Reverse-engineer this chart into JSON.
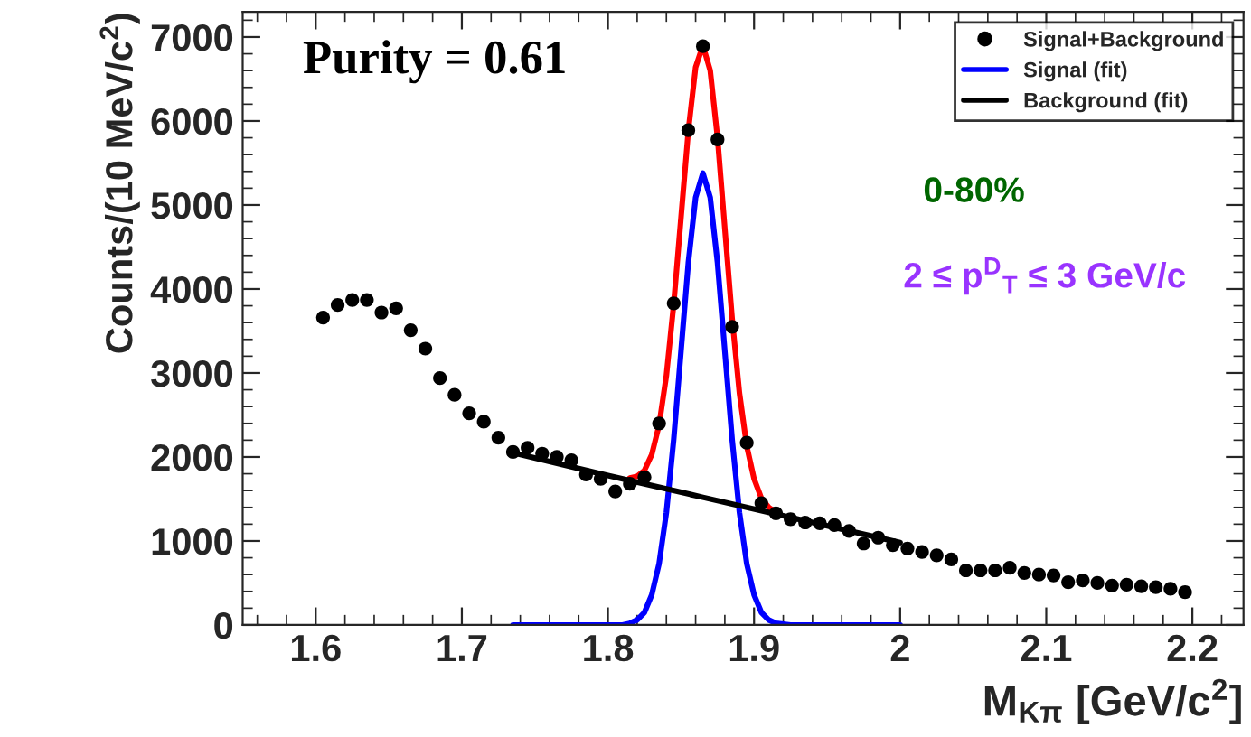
{
  "chart_data": {
    "type": "scatter",
    "xlabel": "M$_{Kπ}$ [GeV/c$^{2}$]",
    "ylabel": "Counts/(10 MeV/c$^{2}$)",
    "xlim": [
      1.55,
      2.235
    ],
    "ylim": [
      0,
      7300
    ],
    "xticks": [
      1.6,
      1.7,
      1.8,
      1.9,
      2,
      2.1,
      2.2
    ],
    "yticks": [
      0,
      1000,
      2000,
      3000,
      4000,
      5000,
      6000,
      7000
    ],
    "grid": false,
    "legend": "top right",
    "annotations": [
      "Purity = 0.61",
      "0-80%",
      "2 ≤ p$^{D}$$_{T}$ ≤ 3 GeV/c"
    ],
    "series": [
      {
        "name": "Signal+Background",
        "marker": "circle",
        "color": "#000000",
        "x": [
          1.605,
          1.615,
          1.625,
          1.635,
          1.645,
          1.655,
          1.665,
          1.675,
          1.685,
          1.695,
          1.705,
          1.715,
          1.725,
          1.735,
          1.745,
          1.755,
          1.765,
          1.775,
          1.785,
          1.795,
          1.805,
          1.815,
          1.825,
          1.835,
          1.845,
          1.855,
          1.865,
          1.875,
          1.885,
          1.895,
          1.905,
          1.915,
          1.925,
          1.935,
          1.945,
          1.955,
          1.965,
          1.975,
          1.985,
          1.995,
          2.005,
          2.015,
          2.025,
          2.035,
          2.045,
          2.055,
          2.065,
          2.075,
          2.085,
          2.095,
          2.105,
          2.115,
          2.125,
          2.135,
          2.145,
          2.155,
          2.165,
          2.175,
          2.185,
          2.195
        ],
        "values": [
          3660,
          3810,
          3870,
          3870,
          3720,
          3770,
          3510,
          3290,
          2940,
          2740,
          2520,
          2420,
          2230,
          2060,
          2110,
          2040,
          2000,
          1960,
          1790,
          1740,
          1590,
          1680,
          1760,
          2400,
          3830,
          5890,
          6890,
          5780,
          3550,
          2170,
          1450,
          1330,
          1260,
          1220,
          1210,
          1190,
          1120,
          970,
          1040,
          950,
          910,
          870,
          830,
          780,
          650,
          650,
          650,
          680,
          620,
          600,
          590,
          510,
          530,
          500,
          470,
          480,
          460,
          450,
          430,
          390
        ]
      },
      {
        "type": "line",
        "marker": "none",
        "color": "#ff0000",
        "x": [
          1.815,
          1.82,
          1.825,
          1.83,
          1.835,
          1.84,
          1.845,
          1.85,
          1.855,
          1.86,
          1.865,
          1.87,
          1.875,
          1.88,
          1.885,
          1.89,
          1.895,
          1.9,
          1.905,
          1.91,
          1.915
        ],
        "values": [
          1750,
          1770,
          1840,
          2030,
          2380,
          2970,
          3820,
          4850,
          5880,
          6640,
          6900,
          6600,
          5800,
          4720,
          3650,
          2760,
          2130,
          1740,
          1510,
          1400,
          1340
        ]
      },
      {
        "name": "Signal (fit)",
        "type": "line",
        "marker": "none",
        "color": "#0000ff",
        "x": [
          1.735,
          1.8,
          1.81,
          1.815,
          1.82,
          1.825,
          1.83,
          1.835,
          1.84,
          1.845,
          1.85,
          1.855,
          1.86,
          1.865,
          1.87,
          1.875,
          1.88,
          1.885,
          1.89,
          1.895,
          1.9,
          1.905,
          1.91,
          1.915,
          1.925,
          2.0
        ],
        "values": [
          0,
          0,
          0,
          20,
          60,
          150,
          360,
          730,
          1340,
          2210,
          3260,
          4310,
          5090,
          5380,
          5090,
          4310,
          3260,
          2210,
          1340,
          730,
          360,
          150,
          60,
          20,
          0,
          0
        ]
      },
      {
        "name": "Background (fit)",
        "type": "line",
        "marker": "none",
        "color": "#000000",
        "x": [
          1.735,
          1.8,
          1.865,
          1.93,
          2.0
        ],
        "values": [
          2050,
          1780,
          1520,
          1260,
          980
        ]
      }
    ]
  }
}
